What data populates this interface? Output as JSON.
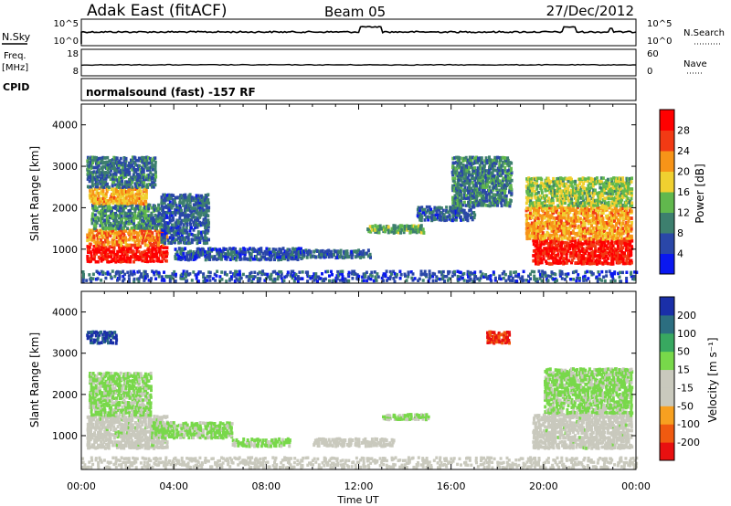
{
  "header": {
    "station": "Adak East (fitACF)",
    "beam": "Beam 05",
    "date": "27/Dec/2012"
  },
  "status_panels": {
    "nsky_label": "N.Sky",
    "nsky_ticks": [
      "10^5",
      "10^0"
    ],
    "nsearch_label": "N.Search",
    "nsearch_ticks": [
      "10^5",
      "10^0"
    ],
    "freq_label": "Freq.",
    "freq_unit": "[MHz]",
    "freq_ticks": [
      "18",
      "8"
    ],
    "nave_label": "Nave",
    "nave_ticks": [
      "60",
      "0"
    ],
    "cpid_label": "CPID",
    "cpid_value": "normalsound (fast) -157 RF"
  },
  "chart_data": [
    {
      "type": "heatmap",
      "panel": "power",
      "ylabel": "Slant Range [km]",
      "ylim": [
        180,
        4500
      ],
      "yticks": [
        "4000",
        "3000",
        "2000",
        "1000"
      ],
      "xticks": [
        "00:00",
        "04:00",
        "08:00",
        "12:00",
        "16:00",
        "20:00",
        "00:00"
      ],
      "xlim_hours": [
        0,
        24
      ],
      "colorbar": {
        "label": "Power [dB]",
        "ticks": [
          "28",
          "24",
          "20",
          "16",
          "12",
          "8",
          "4"
        ],
        "range": [
          0,
          30
        ],
        "colors": [
          "#0a18f0",
          "#2a47a8",
          "#3d7f6e",
          "#61b84d",
          "#f0d030",
          "#f79418",
          "#f23a14",
          "#ff0000"
        ]
      },
      "regions": [
        {
          "t": [
            0.2,
            3.7
          ],
          "r": [
            650,
            1050
          ],
          "value": 28
        },
        {
          "t": [
            0.2,
            3.7
          ],
          "r": [
            1050,
            1450
          ],
          "value": 21
        },
        {
          "t": [
            0.4,
            3.4
          ],
          "r": [
            1450,
            2050
          ],
          "value": 10
        },
        {
          "t": [
            0.3,
            2.8
          ],
          "r": [
            2050,
            2450
          ],
          "value": 19
        },
        {
          "t": [
            0.2,
            3.2
          ],
          "r": [
            2450,
            3200
          ],
          "value": 8
        },
        {
          "t": [
            3.4,
            5.5
          ],
          "r": [
            1100,
            2300
          ],
          "value": 7
        },
        {
          "t": [
            4.0,
            9.5
          ],
          "r": [
            700,
            1000
          ],
          "value": 6
        },
        {
          "t": [
            9.5,
            12.5
          ],
          "r": [
            750,
            950
          ],
          "value": 7
        },
        {
          "t": [
            12.3,
            14.8
          ],
          "r": [
            1350,
            1550
          ],
          "value": 12
        },
        {
          "t": [
            14.5,
            17.0
          ],
          "r": [
            1650,
            2000
          ],
          "value": 7
        },
        {
          "t": [
            16.0,
            18.6
          ],
          "r": [
            2000,
            3200
          ],
          "value": 9
        },
        {
          "t": [
            19.5,
            23.8
          ],
          "r": [
            600,
            1200
          ],
          "value": 27
        },
        {
          "t": [
            19.2,
            23.8
          ],
          "r": [
            1200,
            2000
          ],
          "value": 20
        },
        {
          "t": [
            19.2,
            23.8
          ],
          "r": [
            2000,
            2700
          ],
          "value": 14
        },
        {
          "t": [
            0.0,
            24.0
          ],
          "r": [
            180,
            450
          ],
          "value": 6
        }
      ]
    },
    {
      "type": "heatmap",
      "panel": "velocity",
      "ylabel": "Slant Range [km]",
      "ylim": [
        180,
        4500
      ],
      "yticks": [
        "4000",
        "3000",
        "2000",
        "1000"
      ],
      "xticks": [
        "00:00",
        "04:00",
        "08:00",
        "12:00",
        "16:00",
        "20:00",
        "00:00"
      ],
      "xlim_hours": [
        0,
        24
      ],
      "xlabel": "Time UT",
      "colorbar": {
        "label": "Velocity [m s⁻¹]",
        "ticks": [
          "200",
          "100",
          "50",
          "15",
          "-15",
          "-50",
          "-100",
          "-200"
        ],
        "range": [
          -250,
          250
        ],
        "colors": [
          "#e81010",
          "#f05a10",
          "#f7a020",
          "#c9c9bd",
          "#c9c9bd",
          "#78d84a",
          "#38a860",
          "#2c6e80",
          "#1a2fa8"
        ]
      },
      "regions": [
        {
          "t": [
            0.2,
            3.7
          ],
          "r": [
            650,
            1450
          ],
          "value": 0
        },
        {
          "t": [
            0.3,
            3.0
          ],
          "r": [
            1450,
            2500
          ],
          "value": 40
        },
        {
          "t": [
            0.2,
            1.5
          ],
          "r": [
            3200,
            3500
          ],
          "value": 200
        },
        {
          "t": [
            3.0,
            6.5
          ],
          "r": [
            900,
            1300
          ],
          "value": 35
        },
        {
          "t": [
            6.5,
            9.0
          ],
          "r": [
            700,
            900
          ],
          "value": 45
        },
        {
          "t": [
            10.0,
            13.5
          ],
          "r": [
            700,
            900
          ],
          "value": -40
        },
        {
          "t": [
            13.0,
            15.0
          ],
          "r": [
            1350,
            1500
          ],
          "value": 30
        },
        {
          "t": [
            17.5,
            18.5
          ],
          "r": [
            3200,
            3500
          ],
          "value": -200
        },
        {
          "t": [
            19.5,
            23.8
          ],
          "r": [
            650,
            1500
          ],
          "value": 0
        },
        {
          "t": [
            20.0,
            23.8
          ],
          "r": [
            1500,
            2600
          ],
          "value": 40
        },
        {
          "t": [
            0.0,
            24.0
          ],
          "r": [
            180,
            450
          ],
          "value": -40
        }
      ]
    }
  ]
}
